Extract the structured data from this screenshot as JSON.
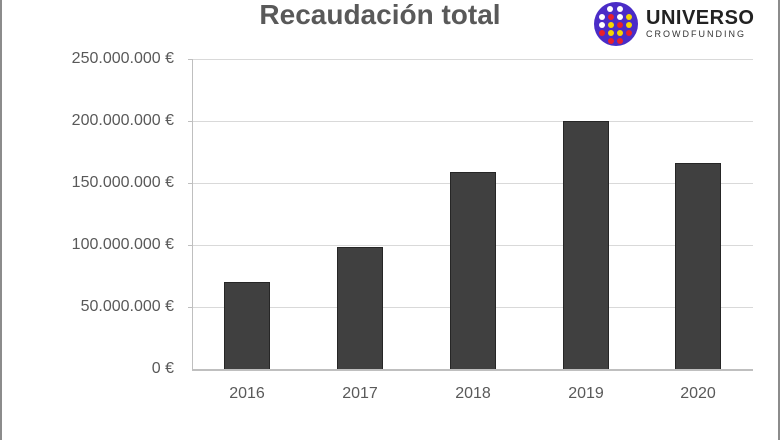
{
  "chart_data": {
    "type": "bar",
    "title": "Recaudación total",
    "xlabel": "",
    "ylabel": "",
    "categories": [
      "2016",
      "2017",
      "2018",
      "2019",
      "2020"
    ],
    "values": [
      71000000,
      99000000,
      160000000,
      201000000,
      167000000
    ],
    "ylim": [
      0,
      250000000
    ],
    "yticks": [
      "0 €",
      "50.000.000 €",
      "100.000.000 €",
      "150.000.000 €",
      "200.000.000 €",
      "250.000.000 €"
    ],
    "grid": true,
    "legend": null,
    "bar_color": "#404040"
  },
  "header": {
    "title": "Recaudación total",
    "logo": {
      "name": "UNIVERSO",
      "tagline": "CROWDFUNDING",
      "badge_color": "#4a2cc7"
    }
  },
  "axis": {
    "y_labels": [
      "250.000.000 €",
      "200.000.000 €",
      "150.000.000 €",
      "100.000.000 €",
      "50.000.000 €",
      "0 €"
    ],
    "x_labels": [
      "2016",
      "2017",
      "2018",
      "2019",
      "2020"
    ]
  }
}
